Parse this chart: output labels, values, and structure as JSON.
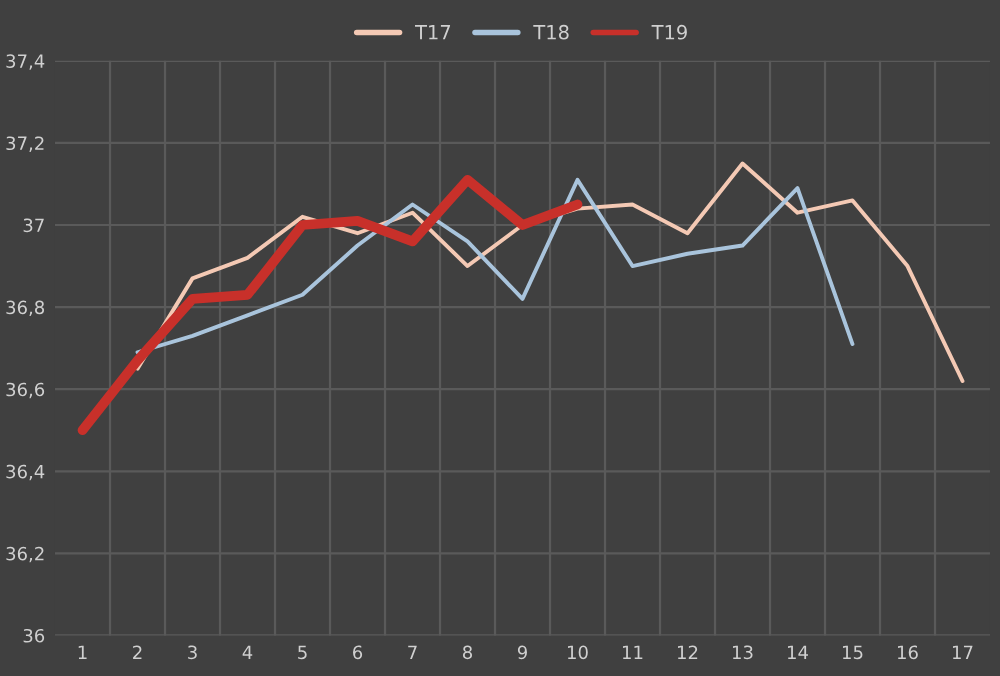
{
  "chart_data": {
    "type": "line",
    "categories": [
      "1",
      "2",
      "3",
      "4",
      "5",
      "6",
      "7",
      "8",
      "9",
      "10",
      "11",
      "12",
      "13",
      "14",
      "15",
      "16",
      "17"
    ],
    "series": [
      {
        "name": "T17",
        "color": "#f4c9b4",
        "values": [
          null,
          36.65,
          36.87,
          36.92,
          37.02,
          36.98,
          37.03,
          36.9,
          37.0,
          37.04,
          37.05,
          36.98,
          37.15,
          37.03,
          37.06,
          36.9,
          36.62
        ]
      },
      {
        "name": "T18",
        "color": "#a9c4dc",
        "values": [
          null,
          36.69,
          36.73,
          36.78,
          36.83,
          36.95,
          37.05,
          36.96,
          36.82,
          37.11,
          36.9,
          36.93,
          36.95,
          37.09,
          36.71,
          null,
          null
        ]
      },
      {
        "name": "T19",
        "color": "#c8302a",
        "values": [
          36.5,
          36.67,
          36.82,
          36.83,
          37.0,
          37.01,
          36.96,
          37.11,
          37.0,
          37.05,
          null,
          null,
          null,
          null,
          null,
          null,
          null
        ]
      }
    ],
    "ylim": [
      36,
      37.4
    ],
    "yticks": [
      {
        "value": 36,
        "label": "36"
      },
      {
        "value": 36.2,
        "label": "36,2"
      },
      {
        "value": 36.4,
        "label": "36,4"
      },
      {
        "value": 36.6,
        "label": "36,6"
      },
      {
        "value": 36.8,
        "label": "36,8"
      },
      {
        "value": 37,
        "label": "37"
      },
      {
        "value": 37.2,
        "label": "37,2"
      },
      {
        "value": 37.4,
        "label": "37,4"
      }
    ],
    "grid": true,
    "legend": "top",
    "marker": "none",
    "line_style": "solid"
  }
}
